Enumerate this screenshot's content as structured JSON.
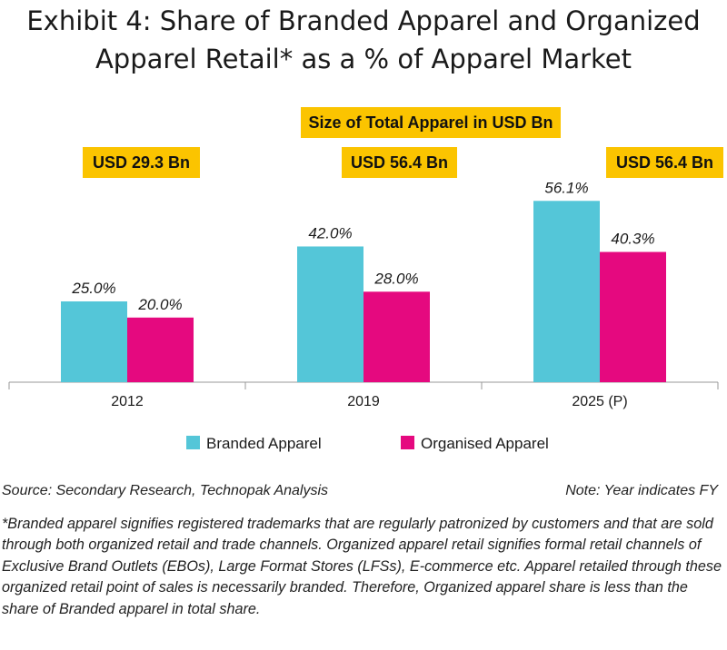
{
  "title_line1": "Exhibit 4: Share of Branded Apparel and Organized",
  "title_line2": "Apparel Retail* as a % of Apparel Market",
  "size_header": "Size of Total Apparel in USD Bn",
  "size_tags": [
    "USD 29.3 Bn",
    "USD 56.4 Bn",
    "USD 56.4 Bn"
  ],
  "colors": {
    "branded": "#54c6d8",
    "organised": "#e5097f",
    "tag": "#fbc400"
  },
  "chart_data": {
    "type": "bar",
    "categories": [
      "2012",
      "2019",
      "2025 (P)"
    ],
    "series": [
      {
        "name": "Branded Apparel",
        "values": [
          25.0,
          42.0,
          56.1
        ],
        "labels": [
          "25.0%",
          "42.0%",
          "56.1%"
        ]
      },
      {
        "name": "Organised Apparel",
        "values": [
          20.0,
          28.0,
          40.3
        ],
        "labels": [
          "20.0%",
          "28.0%",
          "40.3%"
        ]
      }
    ],
    "ylim": [
      0,
      60
    ],
    "legend_position": "bottom"
  },
  "source": "Source: Secondary Research, Technopak Analysis",
  "note": "Note: Year indicates FY",
  "footnote": "*Branded apparel signifies registered trademarks that are regularly patronized by customers and that are sold through both organized retail and trade channels. Organized apparel retail signifies formal retail channels of Exclusive Brand Outlets (EBOs), Large Format Stores (LFSs), E-commerce etc. Apparel retailed through these organized retail point of sales is necessarily branded. Therefore, Organized apparel share is less than the share of Branded apparel in total share."
}
